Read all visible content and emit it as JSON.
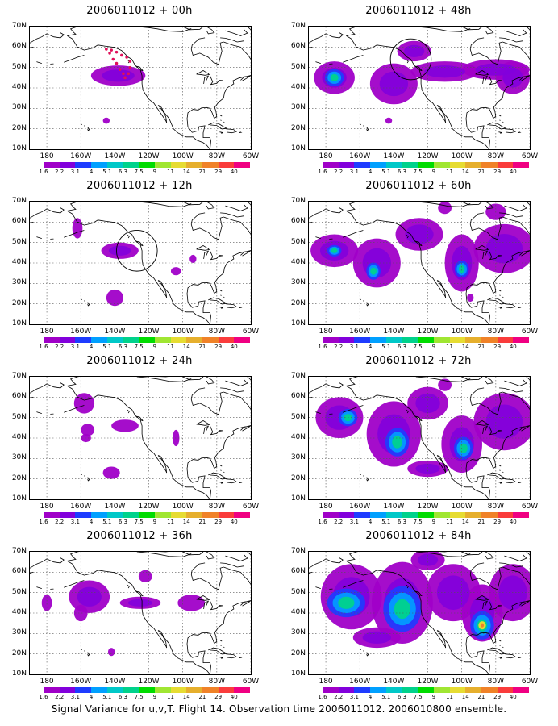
{
  "panels": [
    {
      "title": "2006011012 + 00h",
      "ellipse": false,
      "dots": true,
      "blobs": [
        [
          -138,
          46,
          16,
          5,
          0.6
        ],
        [
          -145,
          24,
          2,
          1.5,
          0.6
        ]
      ],
      "cores": []
    },
    {
      "title": "2006011012 + 48h",
      "ellipse": true,
      "dots": false,
      "blobs": [
        [
          -175,
          45,
          12,
          8,
          0.6
        ],
        [
          -140,
          42,
          14,
          10,
          0.6
        ],
        [
          -128,
          58,
          10,
          5,
          0.6
        ],
        [
          -110,
          48,
          20,
          5,
          0.6
        ],
        [
          -80,
          49,
          20,
          5,
          0.6
        ],
        [
          -70,
          45,
          10,
          8,
          0.6
        ],
        [
          -143,
          24,
          2,
          1.5,
          0.6
        ]
      ],
      "cores": [
        [
          -175,
          45,
          4,
          3
        ]
      ]
    },
    {
      "title": "2006011012 + 12h",
      "ellipse": true,
      "dots": false,
      "blobs": [
        [
          -162,
          57,
          3,
          5,
          0.6
        ],
        [
          -137,
          46,
          11,
          4,
          0.6
        ],
        [
          -140,
          23,
          5,
          4,
          0.6
        ],
        [
          -104,
          36,
          3,
          2,
          0.6
        ],
        [
          -94,
          42,
          2,
          2,
          0.6
        ]
      ],
      "cores": []
    },
    {
      "title": "2006011012 + 60h",
      "ellipse": false,
      "dots": false,
      "blobs": [
        [
          -175,
          46,
          14,
          8,
          0.6
        ],
        [
          -150,
          40,
          14,
          12,
          0.6
        ],
        [
          -125,
          54,
          14,
          8,
          0.6
        ],
        [
          -100,
          40,
          10,
          14,
          0.6
        ],
        [
          -75,
          47,
          18,
          12,
          0.6
        ],
        [
          -110,
          67,
          4,
          3,
          0.6
        ],
        [
          -80,
          65,
          6,
          4,
          0.6
        ],
        [
          -95,
          23,
          2,
          2,
          0.6
        ]
      ],
      "cores": [
        [
          -175,
          46,
          3,
          2
        ],
        [
          -152,
          36,
          3,
          3
        ],
        [
          -100,
          37,
          3,
          3
        ]
      ]
    },
    {
      "title": "2006011012 + 24h",
      "ellipse": false,
      "dots": false,
      "blobs": [
        [
          -158,
          57,
          6,
          5,
          0.6
        ],
        [
          -156,
          44,
          4,
          3,
          0.6
        ],
        [
          -157,
          40,
          3,
          2,
          0.6
        ],
        [
          -134,
          46,
          8,
          3,
          0.6
        ],
        [
          -142,
          23,
          5,
          3,
          0.6
        ],
        [
          -104,
          40,
          2,
          4,
          0.6
        ]
      ],
      "cores": []
    },
    {
      "title": "2006011012 + 72h",
      "ellipse": false,
      "dots": false,
      "blobs": [
        [
          -172,
          50,
          14,
          10,
          0.6
        ],
        [
          -140,
          42,
          16,
          16,
          0.6
        ],
        [
          -120,
          57,
          12,
          8,
          0.6
        ],
        [
          -100,
          37,
          12,
          14,
          0.6
        ],
        [
          -75,
          48,
          18,
          14,
          0.6
        ],
        [
          -120,
          25,
          12,
          4,
          0.6
        ],
        [
          -110,
          66,
          4,
          3,
          0.6
        ]
      ],
      "cores": [
        [
          -167,
          50,
          4,
          3
        ],
        [
          -138,
          38,
          5,
          5
        ],
        [
          -99,
          35,
          4,
          4
        ]
      ]
    },
    {
      "title": "2006011012 + 36h",
      "ellipse": false,
      "dots": false,
      "blobs": [
        [
          -180,
          45,
          3,
          4,
          0.6
        ],
        [
          -155,
          48,
          12,
          8,
          0.6
        ],
        [
          -160,
          40,
          4,
          4,
          0.6
        ],
        [
          -125,
          45,
          12,
          3,
          0.6
        ],
        [
          -95,
          45,
          8,
          4,
          0.6
        ],
        [
          -122,
          58,
          4,
          3,
          0.6
        ],
        [
          -142,
          21,
          2,
          2,
          0.6
        ]
      ],
      "cores": []
    },
    {
      "title": "2006011012 + 84h",
      "ellipse": false,
      "dots": false,
      "blobs": [
        [
          -165,
          48,
          18,
          16,
          0.6
        ],
        [
          -135,
          45,
          18,
          20,
          0.6
        ],
        [
          -105,
          50,
          16,
          14,
          0.6
        ],
        [
          -88,
          40,
          12,
          14,
          0.6
        ],
        [
          -70,
          50,
          14,
          14,
          0.6
        ],
        [
          -150,
          28,
          14,
          5,
          0.6
        ],
        [
          -120,
          66,
          10,
          5,
          0.6
        ]
      ],
      "cores": [
        [
          -168,
          45,
          8,
          5
        ],
        [
          -135,
          42,
          8,
          8
        ],
        [
          -88,
          34,
          5,
          5
        ]
      ]
    }
  ],
  "yticks": [
    "70N",
    "60N",
    "50N",
    "40N",
    "30N",
    "20N",
    "10N"
  ],
  "xticks": [
    "180",
    "160W",
    "140W",
    "120W",
    "100W",
    "80W",
    "60W"
  ],
  "colorbar": {
    "labels": [
      "1.6",
      "2.2",
      "3.1",
      "4",
      "5.1",
      "6.3",
      "7.5",
      "9",
      "11",
      "14",
      "21",
      "29",
      "40"
    ],
    "colors": [
      "#a000c8",
      "#8200dc",
      "#1e3cff",
      "#00a0ff",
      "#00c8c8",
      "#00d28c",
      "#00dc00",
      "#a0e632",
      "#e6dc32",
      "#e6af2d",
      "#f08228",
      "#fa3c3c",
      "#f00082"
    ]
  },
  "footer": "Signal Variance for u,v,T. Flight 14. Observation time 2006011012. 2006010800 ensemble."
}
